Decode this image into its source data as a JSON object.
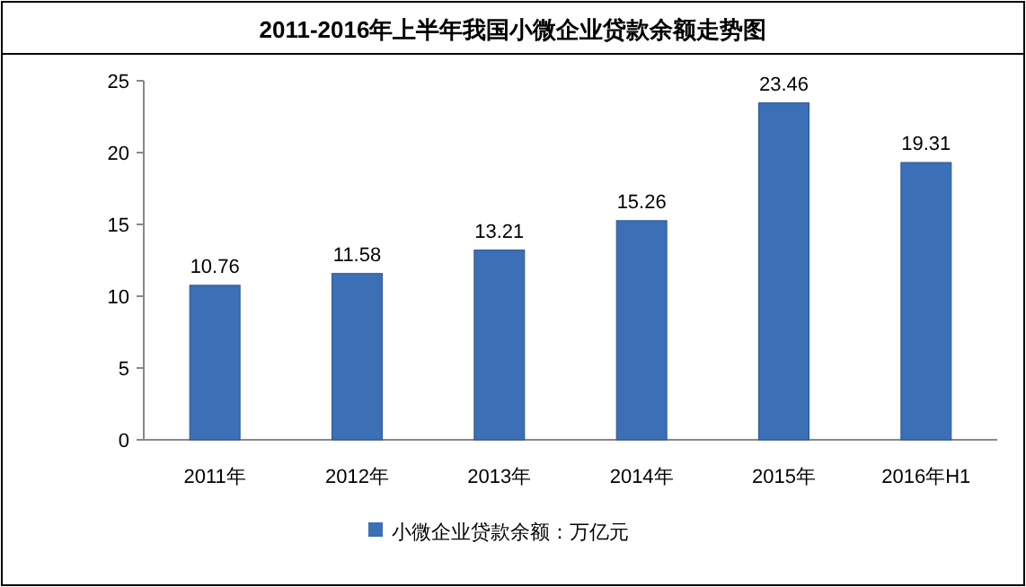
{
  "chart_data": {
    "type": "bar",
    "title": "2011-2016年上半年我国小微企业贷款余额走势图",
    "categories": [
      "2011年",
      "2012年",
      "2013年",
      "2014年",
      "2015年",
      "2016年H1"
    ],
    "series": [
      {
        "name": "小微企业贷款余额：万亿元",
        "color": "#3b6fb6",
        "values": [
          10.76,
          11.58,
          13.21,
          15.26,
          23.46,
          19.31
        ]
      }
    ],
    "ylim": [
      0,
      25
    ],
    "yticks": [
      0,
      5,
      10,
      15,
      20,
      25
    ],
    "data_labels": true,
    "legend": "bottom",
    "grid": false
  }
}
